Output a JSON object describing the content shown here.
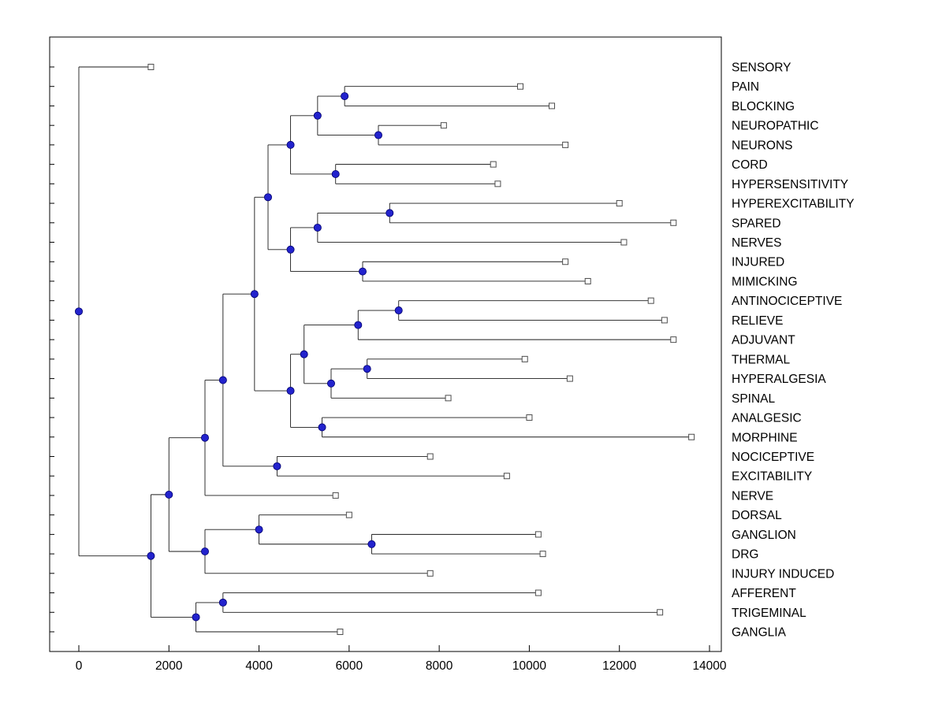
{
  "chart_data": {
    "type": "dendrogram",
    "subtype": "horizontal-tree-root-left-leaves-right",
    "title": "",
    "xlabel": "",
    "ylabel": "",
    "xlim": [
      -650,
      14300
    ],
    "x_ticks": [
      0,
      2000,
      4000,
      6000,
      8000,
      10000,
      12000,
      14000
    ],
    "x_tick_labels": [
      "0",
      "2000",
      "4000",
      "6000",
      "8000",
      "10000",
      "12000",
      "14000"
    ],
    "grid": "off",
    "legend": "none",
    "leaf_labels": [
      "SENSORY",
      "PAIN",
      "BLOCKING",
      "NEUROPATHIC",
      "NEURONS",
      "CORD",
      "HYPERSENSITIVITY",
      "HYPEREXCITABILITY",
      "SPARED",
      "NERVES",
      "INJURED",
      "MIMICKING",
      "ANTINOCICEPTIVE",
      "RELIEVE",
      "ADJUVANT",
      "THERMAL",
      "HYPERALGESIA",
      "SPINAL",
      "ANALGESIC",
      "MORPHINE",
      "NOCICEPTIVE",
      "EXCITABILITY",
      "NERVE",
      "DORSAL",
      "GANGLION",
      "DRG",
      "INJURY INDUCED",
      "AFFERENT",
      "TRIGEMINAL",
      "GANGLIA"
    ],
    "tree": {
      "d": 0,
      "c": [
        {
          "label": "SENSORY",
          "d": 1600
        },
        {
          "d": 1600,
          "c": [
            {
              "d": 2000,
              "c": [
                {
                  "d": 2800,
                  "c": [
                    {
                      "d": 3200,
                      "c": [
                        {
                          "d": 3900,
                          "c": [
                            {
                              "d": 4200,
                              "c": [
                                {
                                  "d": 4700,
                                  "c": [
                                    {
                                      "d": 5300,
                                      "c": [
                                        {
                                          "d": 5900,
                                          "c": [
                                            {
                                              "label": "PAIN",
                                              "d": 9800
                                            },
                                            {
                                              "label": "BLOCKING",
                                              "d": 10500
                                            }
                                          ]
                                        },
                                        {
                                          "d": 6650,
                                          "c": [
                                            {
                                              "label": "NEUROPATHIC",
                                              "d": 8100
                                            },
                                            {
                                              "label": "NEURONS",
                                              "d": 10800
                                            }
                                          ]
                                        }
                                      ]
                                    },
                                    {
                                      "d": 5700,
                                      "c": [
                                        {
                                          "label": "CORD",
                                          "d": 9200
                                        },
                                        {
                                          "label": "HYPERSENSITIVITY",
                                          "d": 9300
                                        }
                                      ]
                                    }
                                  ]
                                },
                                {
                                  "d": 4700,
                                  "c": [
                                    {
                                      "d": 5300,
                                      "c": [
                                        {
                                          "d": 6900,
                                          "c": [
                                            {
                                              "label": "HYPEREXCITABILITY",
                                              "d": 12000
                                            },
                                            {
                                              "label": "SPARED",
                                              "d": 13200
                                            }
                                          ]
                                        },
                                        {
                                          "label": "NERVES",
                                          "d": 12100
                                        }
                                      ]
                                    },
                                    {
                                      "d": 6300,
                                      "c": [
                                        {
                                          "label": "INJURED",
                                          "d": 10800
                                        },
                                        {
                                          "label": "MIMICKING",
                                          "d": 11300
                                        }
                                      ]
                                    }
                                  ]
                                }
                              ]
                            },
                            {
                              "d": 4700,
                              "c": [
                                {
                                  "d": 5000,
                                  "c": [
                                    {
                                      "d": 6200,
                                      "c": [
                                        {
                                          "d": 7100,
                                          "c": [
                                            {
                                              "label": "ANTINOCICEPTIVE",
                                              "d": 12700
                                            },
                                            {
                                              "label": "RELIEVE",
                                              "d": 13000
                                            }
                                          ]
                                        },
                                        {
                                          "label": "ADJUVANT",
                                          "d": 13200
                                        }
                                      ]
                                    },
                                    {
                                      "d": 5600,
                                      "c": [
                                        {
                                          "d": 6400,
                                          "c": [
                                            {
                                              "label": "THERMAL",
                                              "d": 9900
                                            },
                                            {
                                              "label": "HYPERALGESIA",
                                              "d": 10900
                                            }
                                          ]
                                        },
                                        {
                                          "label": "SPINAL",
                                          "d": 8200
                                        }
                                      ]
                                    }
                                  ]
                                },
                                {
                                  "d": 5400,
                                  "c": [
                                    {
                                      "label": "ANALGESIC",
                                      "d": 10000
                                    },
                                    {
                                      "label": "MORPHINE",
                                      "d": 13600
                                    }
                                  ]
                                }
                              ]
                            }
                          ]
                        },
                        {
                          "d": 4400,
                          "c": [
                            {
                              "label": "NOCICEPTIVE",
                              "d": 7800
                            },
                            {
                              "label": "EXCITABILITY",
                              "d": 9500
                            }
                          ]
                        }
                      ]
                    },
                    {
                      "label": "NERVE",
                      "d": 5700
                    }
                  ]
                },
                {
                  "d": 2800,
                  "c": [
                    {
                      "d": 4000,
                      "c": [
                        {
                          "label": "DORSAL",
                          "d": 6000
                        },
                        {
                          "d": 6500,
                          "c": [
                            {
                              "label": "GANGLION",
                              "d": 10200
                            },
                            {
                              "label": "DRG",
                              "d": 10300
                            }
                          ]
                        }
                      ]
                    },
                    {
                      "label": "INJURY INDUCED",
                      "d": 7800
                    }
                  ]
                }
              ]
            },
            {
              "d": 2600,
              "c": [
                {
                  "d": 3200,
                  "c": [
                    {
                      "label": "AFFERENT",
                      "d": 10200
                    },
                    {
                      "label": "TRIGEMINAL",
                      "d": 12900
                    }
                  ]
                },
                {
                  "label": "GANGLIA",
                  "d": 5800
                }
              ]
            }
          ]
        }
      ]
    },
    "style": {
      "branch_line_color": "#1a1a1a",
      "axis_color": "#000000",
      "branch_node_fill": "#2323cd",
      "branch_node_stroke": "#00006e",
      "leaf_marker_fill": "#ffffff",
      "leaf_marker_stroke": "#4d4d4d",
      "background": "#ffffff"
    }
  }
}
